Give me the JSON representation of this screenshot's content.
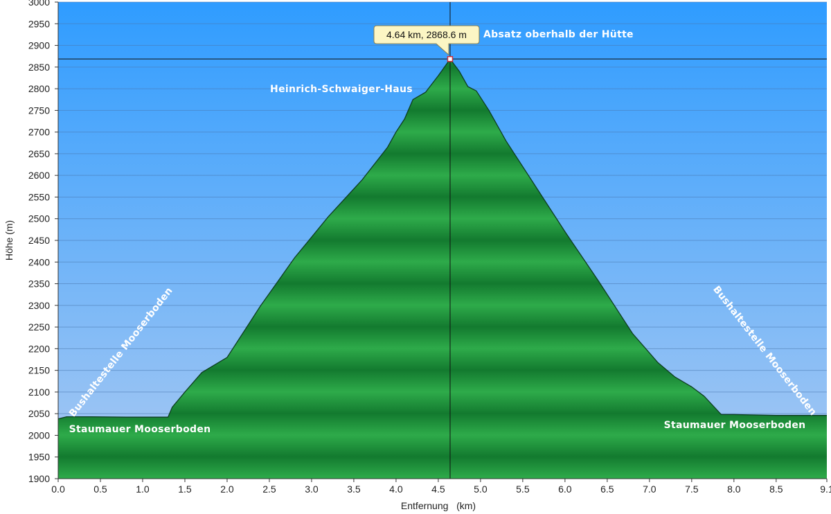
{
  "chart_data": {
    "type": "area",
    "xlabel": "Entfernung   (km)",
    "ylabel": "Höhe (m)",
    "xlim": [
      0,
      9.1
    ],
    "ylim": [
      1900,
      3000
    ],
    "x_ticks": [
      "0.0",
      "0.5",
      "1.0",
      "1.5",
      "2.0",
      "2.5",
      "3.0",
      "3.5",
      "4.0",
      "4.5",
      "5.0",
      "5.5",
      "6.0",
      "6.5",
      "7.0",
      "7.5",
      "8.0",
      "8.5",
      "9.1"
    ],
    "y_ticks": [
      "3000",
      "2950",
      "2900",
      "2850",
      "2800",
      "2750",
      "2700",
      "2650",
      "2600",
      "2550",
      "2500",
      "2450",
      "2400",
      "2350",
      "2300",
      "2250",
      "2200",
      "2150",
      "2100",
      "2050",
      "2000",
      "1950",
      "1900"
    ],
    "grid": true,
    "series": [
      {
        "x": [
          0.0,
          0.1,
          0.4,
          0.8,
          1.3,
          1.35,
          1.5,
          1.7,
          2.0,
          2.1,
          2.4,
          2.8,
          3.2,
          3.6,
          3.9,
          4.0,
          4.1,
          4.2,
          4.35,
          4.5,
          4.64,
          4.75,
          4.85,
          4.95,
          5.1,
          5.3,
          5.6,
          6.0,
          6.4,
          6.8,
          7.1,
          7.3,
          7.5,
          7.65,
          7.85,
          8.0,
          8.5,
          9.1
        ],
        "y": [
          2038,
          2043,
          2043,
          2042,
          2042,
          2065,
          2100,
          2145,
          2180,
          2210,
          2300,
          2410,
          2505,
          2590,
          2665,
          2700,
          2730,
          2775,
          2792,
          2830,
          2868.6,
          2840,
          2805,
          2795,
          2750,
          2680,
          2590,
          2470,
          2355,
          2235,
          2168,
          2135,
          2112,
          2090,
          2048,
          2048,
          2046,
          2046
        ]
      }
    ],
    "cursor": {
      "x": 4.64,
      "y": 2868.6,
      "label": "4.64 km, 2868.6 m"
    },
    "annotations": [
      {
        "text": "Absatz oberhalb der Hütte"
      },
      {
        "text": "Heinrich-Schwaiger-Haus"
      },
      {
        "text": "Bushaltestelle Mooserboden"
      },
      {
        "text": "Staumauer Mooserboden"
      },
      {
        "text": "Bushaltestelle Mooserboden"
      },
      {
        "text": "Staumauer Mooserboden"
      }
    ],
    "colors": {
      "sky_top": "#2f9cff",
      "sky_bottom": "#a9c9f2",
      "terrain_light": "#2eab4a",
      "terrain_dark": "#137a2f",
      "outline": "#0d3d20",
      "tooltip_bg": "#fcf6c4"
    }
  }
}
